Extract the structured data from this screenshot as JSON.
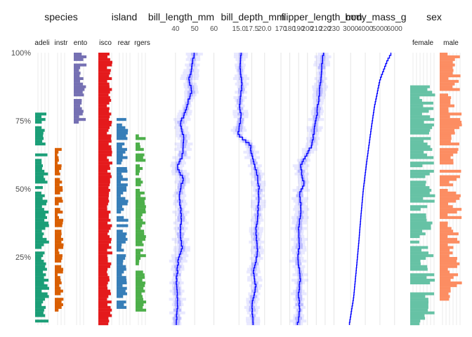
{
  "chart_data": {
    "type": "tableplot",
    "title": "",
    "xlabel": "",
    "ylabel": "",
    "y_axis": {
      "ticks": [
        {
          "value": 100,
          "label": "100%"
        },
        {
          "value": 75,
          "label": "75%"
        },
        {
          "value": 50,
          "label": "50%"
        },
        {
          "value": 25,
          "label": "25%"
        }
      ]
    },
    "n_bins": 100,
    "colors": {
      "Adelie": "#1b9e77",
      "Chinstrap": "#d95f02",
      "Gentoo": "#7570b3",
      "Biscoe": "#e41a1c",
      "Dream": "#377eb8",
      "Torgersen": "#4daf4a",
      "female": "#66c2a5",
      "male": "#fc8d62",
      "mean_line": "#0000ff",
      "band": "#9999ff"
    },
    "categorical_panels": [
      {
        "name": "species",
        "levels": [
          "Adelie",
          "Chinstrap",
          "Gentoo"
        ],
        "level_labels": [
          "adeli",
          "instr",
          "ento"
        ],
        "level_colors": [
          "#1b9e77",
          "#d95f02",
          "#7570b3"
        ],
        "pct_ranges": [
          [
            0,
            78
          ],
          [
            5,
            65
          ],
          [
            74,
            100
          ]
        ]
      },
      {
        "name": "island",
        "levels": [
          "Biscoe",
          "Dream",
          "Torgersen"
        ],
        "level_labels": [
          "isco",
          "rear",
          "rgers"
        ],
        "level_colors": [
          "#e41a1c",
          "#377eb8",
          "#4daf4a"
        ],
        "pct_ranges": [
          [
            0,
            100
          ],
          [
            5,
            76
          ],
          [
            5,
            72
          ]
        ]
      },
      {
        "name": "sex",
        "levels": [
          "female",
          "male"
        ],
        "level_labels": [
          "female",
          "male"
        ],
        "level_colors": [
          "#66c2a5",
          "#fc8d62"
        ],
        "pct_ranges": [
          [
            0,
            88
          ],
          [
            8,
            100
          ]
        ]
      }
    ],
    "numeric_panels": [
      {
        "name": "bill_length_mm",
        "ticks": [
          40,
          50,
          60
        ],
        "xlim": [
          32,
          62
        ],
        "mean_profile": [
          [
            0,
            40.5
          ],
          [
            8,
            41.2
          ],
          [
            16,
            40.5
          ],
          [
            24,
            41.5
          ],
          [
            28,
            43.5
          ],
          [
            32,
            42.5
          ],
          [
            40,
            43.0
          ],
          [
            48,
            42.0
          ],
          [
            54,
            44.0
          ],
          [
            58,
            40.5
          ],
          [
            62,
            43.5
          ],
          [
            68,
            44.5
          ],
          [
            74,
            42.5
          ],
          [
            78,
            45.0
          ],
          [
            82,
            46.5
          ],
          [
            86,
            48.5
          ],
          [
            90,
            47.0
          ],
          [
            94,
            48.5
          ],
          [
            97,
            49.0
          ],
          [
            100,
            50.0
          ]
        ]
      },
      {
        "name": "bill_depth_mm",
        "ticks": [
          15.0,
          17.5,
          20.0
        ],
        "tick_labels": [
          "15.0",
          "17.5",
          "20.0"
        ],
        "xlim": [
          12.5,
          22.5
        ],
        "mean_profile": [
          [
            0,
            17.8
          ],
          [
            8,
            17.5
          ],
          [
            14,
            18.3
          ],
          [
            20,
            17.8
          ],
          [
            26,
            18.6
          ],
          [
            34,
            18.3
          ],
          [
            42,
            18.7
          ],
          [
            50,
            18.9
          ],
          [
            56,
            18.5
          ],
          [
            62,
            17.5
          ],
          [
            66,
            17.2
          ],
          [
            70,
            14.8
          ],
          [
            76,
            15.4
          ],
          [
            82,
            15.1
          ],
          [
            88,
            15.6
          ],
          [
            94,
            15.2
          ],
          [
            100,
            15.4
          ]
        ]
      },
      {
        "name": "flipper_length_mm",
        "ticks": [
          170,
          180,
          190,
          200,
          210,
          220,
          230
        ],
        "xlim": [
          170,
          232
        ],
        "mean_profile": [
          [
            0,
            189
          ],
          [
            6,
            191
          ],
          [
            12,
            190
          ],
          [
            18,
            192
          ],
          [
            24,
            189
          ],
          [
            30,
            191
          ],
          [
            36,
            190
          ],
          [
            42,
            193
          ],
          [
            48,
            191
          ],
          [
            52,
            196
          ],
          [
            58,
            192
          ],
          [
            62,
            198
          ],
          [
            66,
            205
          ],
          [
            72,
            208
          ],
          [
            78,
            211
          ],
          [
            84,
            213
          ],
          [
            90,
            215
          ],
          [
            95,
            216
          ],
          [
            100,
            218
          ]
        ]
      },
      {
        "name": "body_mass_g",
        "ticks": [
          3000,
          4000,
          5000,
          6000
        ],
        "xlim": [
          2700,
          6300
        ],
        "mean_profile": [
          [
            0,
            2900
          ],
          [
            10,
            3200
          ],
          [
            20,
            3380
          ],
          [
            30,
            3550
          ],
          [
            40,
            3700
          ],
          [
            50,
            3870
          ],
          [
            60,
            4100
          ],
          [
            70,
            4350
          ],
          [
            80,
            4620
          ],
          [
            90,
            5000
          ],
          [
            97,
            5500
          ],
          [
            100,
            5800
          ]
        ]
      }
    ],
    "legend": "none"
  }
}
